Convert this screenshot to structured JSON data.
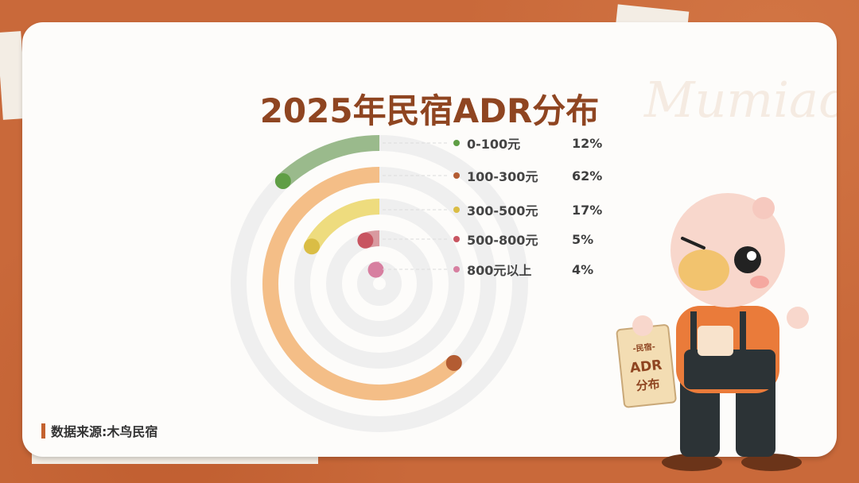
{
  "title": "2025年民宿ADR分布",
  "watermark": "Mumiao",
  "source": "数据来源:木鸟民宿",
  "mascot": {
    "sign_lines": [
      "-民宿-",
      "ADR",
      "分布"
    ]
  },
  "chart_data": {
    "type": "radial-bar",
    "title": "2025年民宿ADR分布",
    "direction": "counterclockwise from top",
    "max": 100,
    "categories": [
      "0-100元",
      "100-300元",
      "300-500元",
      "500-800元",
      "800元以上"
    ],
    "values": [
      12,
      62,
      17,
      5,
      4
    ],
    "labels": [
      "12%",
      "62%",
      "17%",
      "5%",
      "4%"
    ],
    "colors": [
      "#9aba8c",
      "#f4be87",
      "#eedc7e",
      "#d99aa0",
      "#ecbccd"
    ],
    "dot_colors": [
      "#5f9e45",
      "#b35c32",
      "#dabd45",
      "#c85561",
      "#d77fa0"
    ],
    "track_color": "#efefef",
    "legend_placement": "right"
  }
}
